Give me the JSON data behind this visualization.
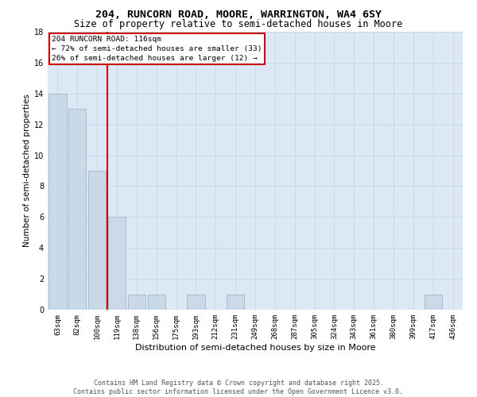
{
  "title1": "204, RUNCORN ROAD, MOORE, WARRINGTON, WA4 6SY",
  "title2": "Size of property relative to semi-detached houses in Moore",
  "xlabel": "Distribution of semi-detached houses by size in Moore",
  "ylabel": "Number of semi-detached properties",
  "categories": [
    "63sqm",
    "82sqm",
    "100sqm",
    "119sqm",
    "138sqm",
    "156sqm",
    "175sqm",
    "193sqm",
    "212sqm",
    "231sqm",
    "249sqm",
    "268sqm",
    "287sqm",
    "305sqm",
    "324sqm",
    "343sqm",
    "361sqm",
    "380sqm",
    "399sqm",
    "417sqm",
    "436sqm"
  ],
  "values": [
    14,
    13,
    9,
    6,
    1,
    1,
    0,
    1,
    0,
    1,
    0,
    0,
    0,
    0,
    0,
    0,
    0,
    0,
    0,
    1,
    0
  ],
  "bar_color": "#c9d9e8",
  "bar_edgecolor": "#a0b8cc",
  "highlight_label": "204 RUNCORN ROAD: 116sqm",
  "annotation_smaller": "← 72% of semi-detached houses are smaller (33)",
  "annotation_larger": "26% of semi-detached houses are larger (12) →",
  "redbox_color": "#cc0000",
  "ylim": [
    0,
    18
  ],
  "yticks": [
    0,
    2,
    4,
    6,
    8,
    10,
    12,
    14,
    16,
    18
  ],
  "grid_color": "#c8d8e8",
  "background_color": "#dce8f4",
  "footer_line1": "Contains HM Land Registry data © Crown copyright and database right 2025.",
  "footer_line2": "Contains public sector information licensed under the Open Government Licence v3.0.",
  "title_fontsize": 9.5,
  "subtitle_fontsize": 8.5,
  "axis_label_fontsize": 7.5,
  "tick_fontsize": 6.5,
  "annotation_fontsize": 6.8,
  "footer_fontsize": 6.0
}
